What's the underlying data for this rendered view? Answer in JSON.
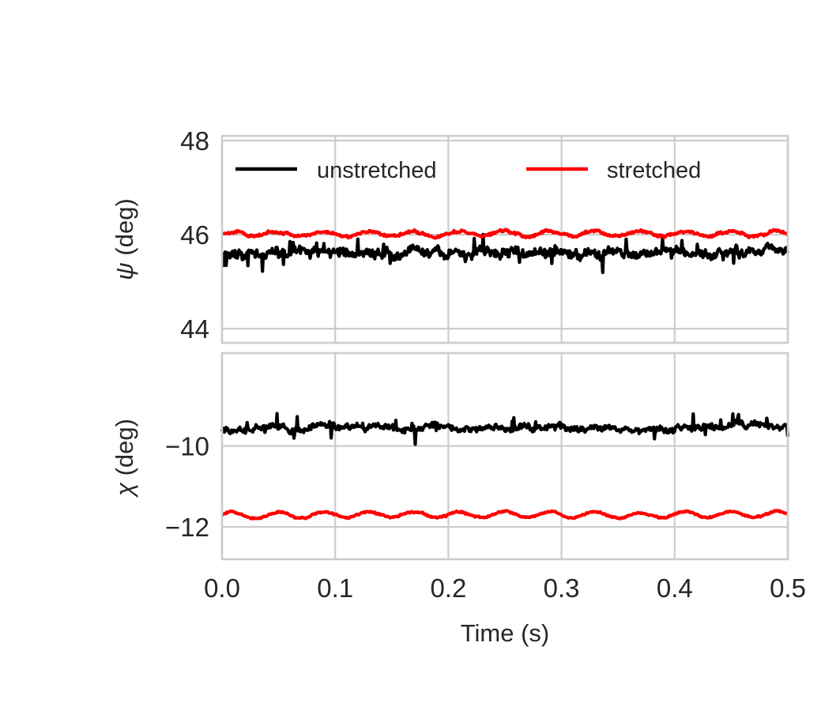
{
  "chart_data": [
    {
      "type": "line",
      "panel": "top",
      "ylabel_symbol": "ψ",
      "ylabel_unit": " (deg)",
      "xlim": [
        0.0,
        0.5
      ],
      "ylim": [
        43.7,
        48.1
      ],
      "yticks": [
        44,
        46,
        48
      ],
      "ytick_labels": [
        "44",
        "46",
        "48"
      ],
      "xticks": [
        0.0,
        0.1,
        0.2,
        0.3,
        0.4,
        0.5
      ],
      "grid": true,
      "legend": {
        "placement": "top",
        "columns": 2
      },
      "series": [
        {
          "name": "unstretched",
          "color": "#000000",
          "mean": 45.6,
          "noise_amplitude": 0.15,
          "spike_amplitude": 0.35
        },
        {
          "name": "stretched",
          "color": "#ff0000",
          "mean": 46.02,
          "noise_amplitude": 0.04,
          "oscillation_amplitude": 0.05
        }
      ]
    },
    {
      "type": "line",
      "panel": "bottom",
      "ylabel_symbol": "χ",
      "ylabel_unit": " (deg)",
      "xlabel": "Time (s)",
      "xlim": [
        0.0,
        0.5
      ],
      "ylim": [
        -12.8,
        -7.7
      ],
      "yticks": [
        -12,
        -10
      ],
      "ytick_labels": [
        "−12",
        "−10"
      ],
      "xticks": [
        0.0,
        0.1,
        0.2,
        0.3,
        0.4,
        0.5
      ],
      "xtick_labels": [
        "0.0",
        "0.1",
        "0.2",
        "0.3",
        "0.4",
        "0.5"
      ],
      "grid": true,
      "series": [
        {
          "name": "unstretched",
          "color": "#000000",
          "mean": -9.55,
          "noise_amplitude": 0.12,
          "spike_amplitude": 0.35
        },
        {
          "name": "stretched",
          "color": "#ff0000",
          "mean": -11.7,
          "noise_amplitude": 0.03,
          "oscillation_amplitude": 0.07
        }
      ]
    }
  ]
}
